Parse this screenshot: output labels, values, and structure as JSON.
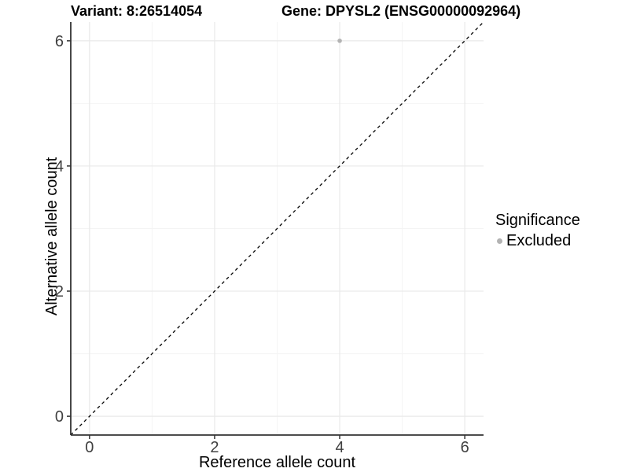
{
  "header": {
    "variant_title": "Variant: 8:26514054",
    "gene_title": "Gene: DPYSL2 (ENSG00000092964)"
  },
  "chart_data": {
    "type": "scatter",
    "xlabel": "Reference allele count",
    "ylabel": "Alternative allele count",
    "xlim": [
      -0.3,
      6.3
    ],
    "ylim": [
      -0.3,
      6.3
    ],
    "x_ticks": [
      0,
      2,
      4,
      6
    ],
    "y_ticks": [
      0,
      2,
      4,
      6
    ],
    "x_minor_ticks": [
      1,
      3,
      5
    ],
    "y_minor_ticks": [
      1,
      3,
      5
    ],
    "grid": true,
    "series": [
      {
        "name": "Excluded",
        "color": "#b3b3b3",
        "points": [
          {
            "x": 4,
            "y": 6
          }
        ]
      }
    ],
    "reference_line": {
      "kind": "identity",
      "equation": "y = x",
      "style": "dashed",
      "color": "#000000"
    },
    "legend": {
      "title": "Significance",
      "position": "right",
      "items": [
        {
          "label": "Excluded",
          "color": "#b3b3b3"
        }
      ]
    }
  },
  "colors": {
    "background": "#ffffff",
    "grid_major": "#e9e9e9",
    "grid_minor": "#f4f4f4",
    "axis_line": "#333333",
    "tick_label": "#404040",
    "axis_title": "#000000",
    "point": "#b3b3b3"
  }
}
